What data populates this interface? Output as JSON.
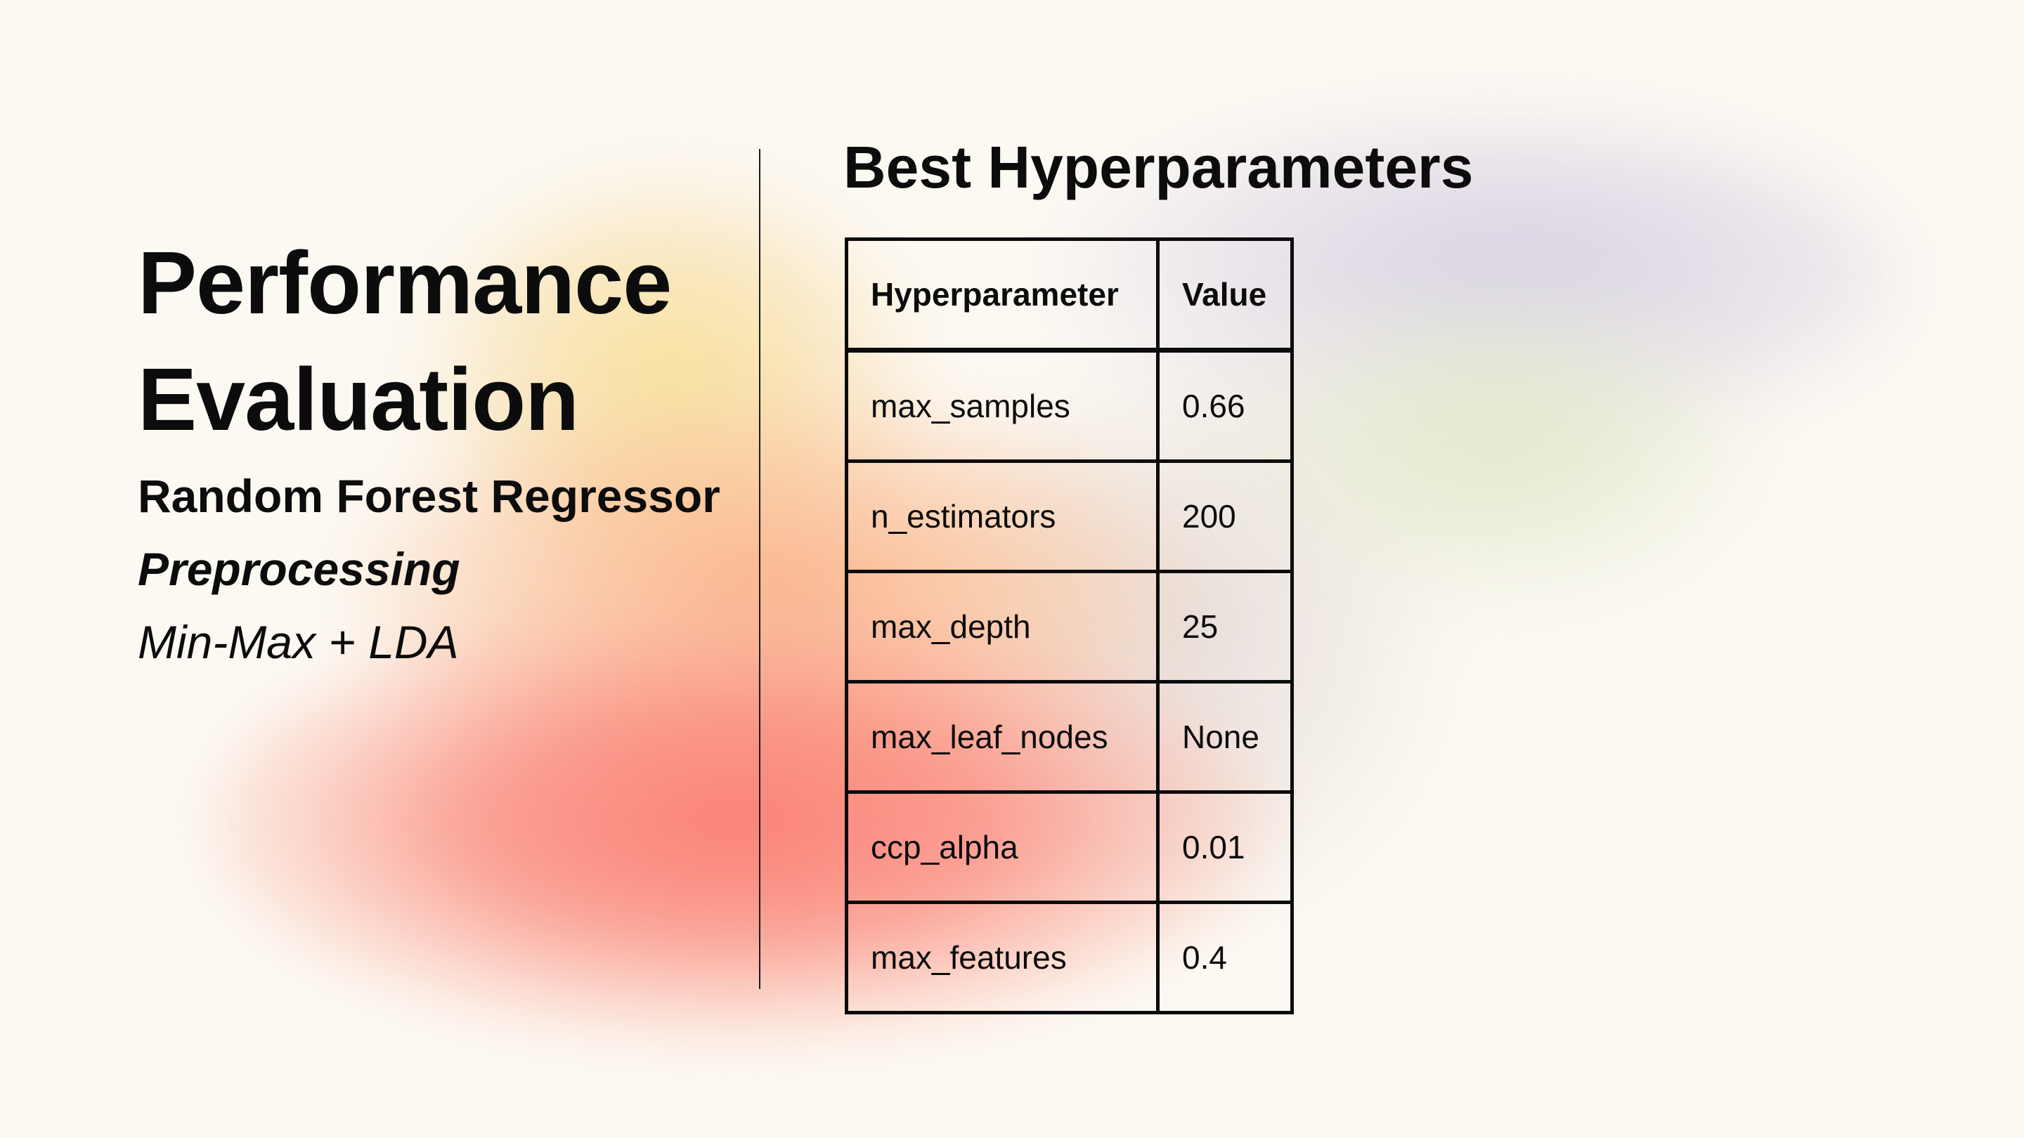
{
  "slide": {
    "title_line1": "Performance",
    "title_line2": "Evaluation",
    "model_name": "Random Forest Regressor",
    "preprocessing_label": "Preprocessing",
    "preprocessing_value": "Min-Max + LDA"
  },
  "hyperparameters": {
    "section_title": "Best Hyperparameters",
    "headers": [
      "Hyperparameter",
      "Value"
    ],
    "rows": [
      {
        "name": "max_samples",
        "value": "0.66"
      },
      {
        "name": "n_estimators",
        "value": "200"
      },
      {
        "name": "max_depth",
        "value": "25"
      },
      {
        "name": "max_leaf_nodes",
        "value": "None"
      },
      {
        "name": "ccp_alpha",
        "value": "0.01"
      },
      {
        "name": "max_features",
        "value": "0.4"
      }
    ]
  },
  "colors": {
    "background": "#fcf9f3",
    "text": "#0c0c0c",
    "gradient_red": "#f87a6e",
    "gradient_yellow": "#f7de8c",
    "gradient_purple": "#d2cde1",
    "gradient_green": "#dee8c4"
  }
}
